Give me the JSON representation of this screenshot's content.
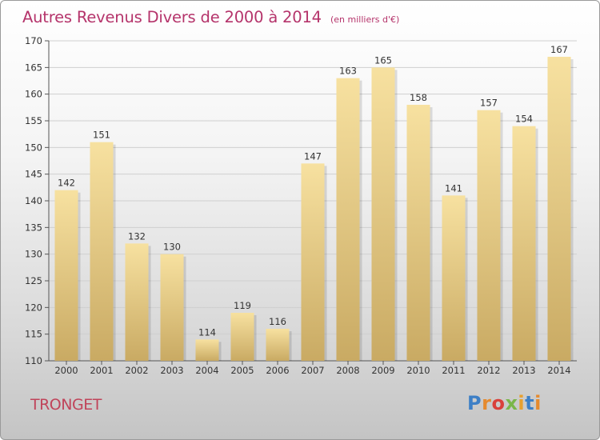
{
  "chart_data": {
    "type": "bar",
    "title": "Autres Revenus Divers de 2000 à 2014",
    "subtitle": "(en milliers d'€)",
    "categories": [
      "2000",
      "2001",
      "2002",
      "2003",
      "2004",
      "2005",
      "2006",
      "2007",
      "2008",
      "2009",
      "2010",
      "2011",
      "2012",
      "2013",
      "2014"
    ],
    "values": [
      142,
      151,
      132,
      130,
      114,
      119,
      116,
      147,
      163,
      165,
      158,
      141,
      157,
      154,
      167
    ],
    "ylim": [
      110,
      170
    ],
    "yticks": [
      110,
      115,
      120,
      125,
      130,
      135,
      140,
      145,
      150,
      155,
      160,
      165,
      170
    ],
    "grid": true,
    "bar_color_top": "#f7e1a0",
    "bar_color_bottom": "#c9aa63"
  },
  "footer": {
    "city": "TRONGET",
    "logo_letters": [
      "P",
      "r",
      "o",
      "x",
      "i",
      "t",
      "i"
    ]
  },
  "colors": {
    "title": "#b5346b",
    "city": "#c0445a"
  }
}
